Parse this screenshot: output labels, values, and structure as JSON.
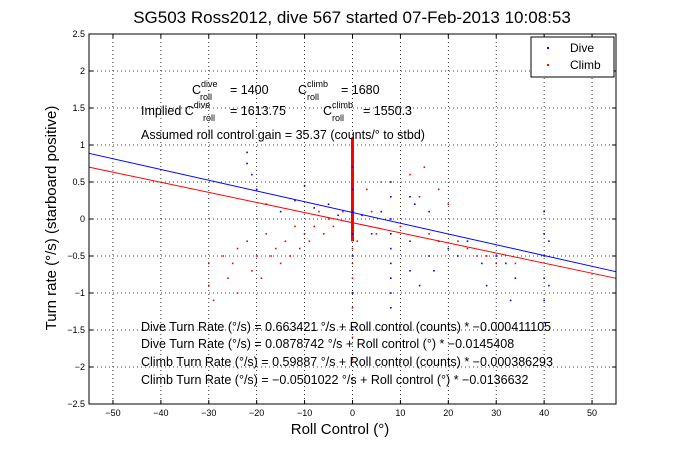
{
  "chart_data": {
    "type": "scatter",
    "title": "SG503 Ross2012, dive 567 started 07-Feb-2013 10:08:53",
    "xlabel": "Roll Control (°)",
    "ylabel": "Turn rate (°/s) (starboard positive)",
    "xlim": [
      -55,
      55
    ],
    "ylim": [
      -2.5,
      2.5
    ],
    "xticks": [
      -50,
      -40,
      -30,
      -20,
      -10,
      0,
      10,
      20,
      30,
      40,
      50
    ],
    "yticks": [
      -2.5,
      -2,
      -1.5,
      -1,
      -0.5,
      0,
      0.5,
      1,
      1.5,
      2,
      2.5
    ],
    "xtick_labels": [
      "−50",
      "−40",
      "−30",
      "−20",
      "−10",
      "0",
      "10",
      "20",
      "30",
      "40",
      "50"
    ],
    "ytick_labels": [
      "−2.5",
      "−2",
      "−1.5",
      "−1",
      "−0.5",
      "0",
      "0.5",
      "1",
      "1.5",
      "2",
      "2.5"
    ],
    "grid": true,
    "legend_position": "top-right",
    "series": [
      {
        "name": "Dive",
        "color": "#0000ff",
        "fit": {
          "intercept": 0.0878742,
          "slope": -0.0145408
        },
        "points": [
          [
            -22,
            0.9
          ],
          [
            -22,
            0.75
          ],
          [
            -21,
            0.6
          ],
          [
            -20,
            0.4
          ],
          [
            -18,
            0.2
          ],
          [
            -15,
            0.1
          ],
          [
            -12,
            0.25
          ],
          [
            -10,
            0.45
          ],
          [
            -8,
            0.15
          ],
          [
            -5,
            0.2
          ],
          [
            -3,
            0.05
          ],
          [
            0,
            0.7
          ],
          [
            0,
            0.4
          ],
          [
            0,
            0.1
          ],
          [
            0,
            -0.2
          ],
          [
            0,
            -0.5
          ],
          [
            0,
            -1.0
          ],
          [
            0,
            -1.5
          ],
          [
            2,
            0.05
          ],
          [
            4,
            -0.2
          ],
          [
            6,
            0.1
          ],
          [
            8,
            0.5
          ],
          [
            8,
            0.3
          ],
          [
            8,
            0.0
          ],
          [
            8,
            -0.2
          ],
          [
            8,
            -0.4
          ],
          [
            8,
            -0.6
          ],
          [
            8,
            -0.8
          ],
          [
            8,
            -1.0
          ],
          [
            8,
            -1.2
          ],
          [
            12,
            0.3
          ],
          [
            12,
            -0.3
          ],
          [
            12,
            -0.7
          ],
          [
            13,
            0.2
          ],
          [
            14,
            -0.9
          ],
          [
            16,
            0.1
          ],
          [
            16,
            -0.5
          ],
          [
            17,
            -0.7
          ],
          [
            18,
            -0.3
          ],
          [
            20,
            -0.4
          ],
          [
            22,
            -0.5
          ],
          [
            24,
            -0.3
          ],
          [
            27,
            -0.6
          ],
          [
            28,
            -0.9
          ],
          [
            30,
            -0.5
          ],
          [
            32,
            -0.6
          ],
          [
            33,
            -1.1
          ],
          [
            34,
            -0.8
          ],
          [
            40,
            0.1
          ],
          [
            40,
            -0.2
          ],
          [
            40,
            -0.5
          ],
          [
            40,
            -0.8
          ],
          [
            40,
            -1.1
          ],
          [
            40,
            -1.4
          ],
          [
            41,
            -0.3
          ],
          [
            41,
            -0.9
          ]
        ]
      },
      {
        "name": "Climb",
        "color": "#ff0000",
        "fit": {
          "intercept": -0.0501022,
          "slope": -0.0136632
        },
        "points": [
          [
            -30,
            -0.6
          ],
          [
            -30,
            -0.9
          ],
          [
            -29,
            -1.1
          ],
          [
            -27,
            -0.5
          ],
          [
            -26,
            -0.8
          ],
          [
            -25,
            -0.6
          ],
          [
            -24,
            -1.0
          ],
          [
            -24,
            -0.4
          ],
          [
            -22,
            -0.3
          ],
          [
            -21,
            -0.7
          ],
          [
            -20,
            -0.5
          ],
          [
            -19,
            -0.8
          ],
          [
            -18,
            -0.2
          ],
          [
            -17,
            -0.5
          ],
          [
            -16,
            -0.4
          ],
          [
            -15,
            -0.6
          ],
          [
            -14,
            -0.3
          ],
          [
            -13,
            -0.5
          ],
          [
            -12,
            -0.1
          ],
          [
            -11,
            -0.4
          ],
          [
            -10,
            -0.2
          ],
          [
            -9,
            -0.3
          ],
          [
            -8,
            -0.1
          ],
          [
            -7,
            0.1
          ],
          [
            -6,
            -0.2
          ],
          [
            -5,
            0.0
          ],
          [
            -4,
            -0.1
          ],
          [
            -2,
            0.1
          ],
          [
            0,
            1.0
          ],
          [
            0,
            0.8
          ],
          [
            0,
            0.6
          ],
          [
            0,
            0.4
          ],
          [
            0,
            0.2
          ],
          [
            0,
            0.0
          ],
          [
            0,
            -0.2
          ],
          [
            0,
            -0.4
          ],
          [
            0,
            -0.6
          ],
          [
            0,
            -0.8
          ],
          [
            0,
            -1.0
          ],
          [
            0,
            -1.2
          ],
          [
            0,
            -1.6
          ],
          [
            0,
            -1.9
          ],
          [
            1,
            -0.3
          ],
          [
            3,
            0.4
          ],
          [
            4,
            0.1
          ],
          [
            5,
            -0.2
          ],
          [
            6,
            0.5
          ],
          [
            10,
            -0.1
          ],
          [
            12,
            0.6
          ],
          [
            14,
            0.3
          ],
          [
            15,
            0.7
          ],
          [
            16,
            -0.2
          ],
          [
            18,
            0.4
          ],
          [
            20,
            0.2
          ],
          [
            22,
            -0.3
          ],
          [
            24,
            -0.4
          ],
          [
            26,
            -0.5
          ],
          [
            28,
            -0.5
          ],
          [
            30,
            -0.6
          ],
          [
            34,
            -0.6
          ]
        ]
      }
    ],
    "annotations": {
      "c_dive_label": "C",
      "c_dive_sup": "dive",
      "c_dive_sub": "roll",
      "c_dive_val": "= 1400",
      "c_climb_label": "C",
      "c_climb_sup": "climb",
      "c_climb_sub": "roll",
      "c_climb_val": "= 1680",
      "implied_prefix": "Implied C",
      "implied_dive_sup": "dive",
      "implied_dive_sub": "roll",
      "implied_dive_val": "= 1613.75",
      "implied_climb_label": "C",
      "implied_climb_sup": "climb",
      "implied_climb_sub": "roll",
      "implied_climb_val": "= 1550.3",
      "assumed_gain": "Assumed roll control gain = 35.37 (counts/° to stbd)",
      "fit_lines": [
        "Dive Turn Rate (°/s) = 0.663421 °/s + Roll control (counts) * −0.000411105",
        "Dive Turn Rate (°/s) = 0.0878742 °/s + Roll control (°) * −0.0145408",
        "Climb Turn Rate (°/s) = 0.59887 °/s + Roll control (counts) * −0.000386293",
        "Climb Turn Rate (°/s) = −0.0501022 °/s + Roll control (°) * −0.0136632"
      ]
    }
  }
}
